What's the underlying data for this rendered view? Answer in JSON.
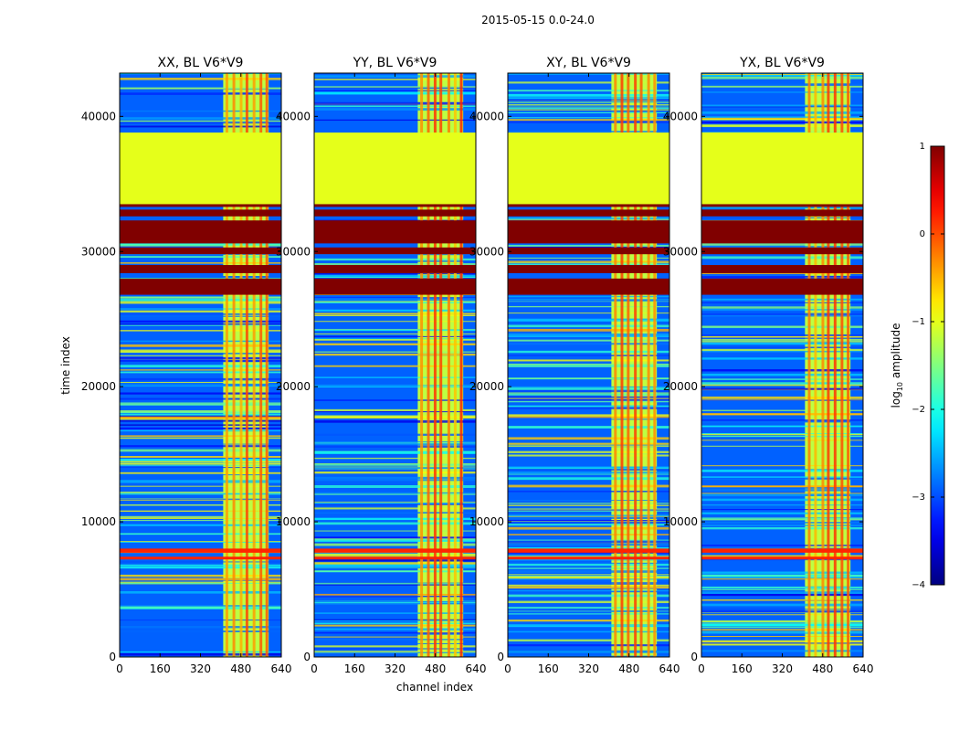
{
  "suptitle": "2015-05-15 0.0-24.0",
  "chart_data": {
    "type": "heatmap",
    "title": "2015-05-15 0.0-24.0",
    "xlabel": "channel index",
    "ylabel": "time index",
    "xlim": [
      0,
      640
    ],
    "ylim": [
      0,
      43200
    ],
    "xticks": [
      0,
      160,
      320,
      480,
      640
    ],
    "yticks": [
      0,
      10000,
      20000,
      30000,
      40000
    ],
    "xtick_labels": [
      "0",
      "160",
      "320",
      "480",
      "640"
    ],
    "ytick_labels": [
      "0",
      "10000",
      "20000",
      "30000",
      "40000"
    ],
    "colorscale": "jet",
    "panels": [
      {
        "title": "XX, BL V6*V9",
        "pol": "XX"
      },
      {
        "title": "YY, BL V6*V9",
        "pol": "YY"
      },
      {
        "title": "XY, BL V6*V9",
        "pol": "XY"
      },
      {
        "title": "YX, BL V6*V9",
        "pol": "YX"
      }
    ],
    "colorbar": {
      "label": "log10 amplitude",
      "label_main": "log",
      "label_sub": "10",
      "label_rest": " amplitude",
      "range": [
        -4,
        1
      ],
      "ticks": [
        1,
        0,
        -1,
        -2,
        -3,
        -4
      ],
      "tick_labels": [
        "1",
        "0",
        "−1",
        "−2",
        "−3",
        "−4"
      ]
    },
    "regions": {
      "background_log_amplitude": -2.9,
      "rfi_channel_band": [
        410,
        590
      ],
      "rfi_band_log_amplitude": -1.2,
      "flagged_constant_rows": [
        [
          33500,
          38800
        ]
      ],
      "flagged_constant_value": -1.0,
      "saturated_rows": [
        [
          26800,
          28000
        ],
        [
          28400,
          29000
        ],
        [
          29800,
          30300
        ],
        [
          30600,
          32300
        ],
        [
          32600,
          33100
        ],
        [
          33300,
          33500
        ]
      ],
      "saturated_value": 1.0,
      "bright_rows_center": [
        7300,
        7800,
        7900
      ]
    }
  }
}
